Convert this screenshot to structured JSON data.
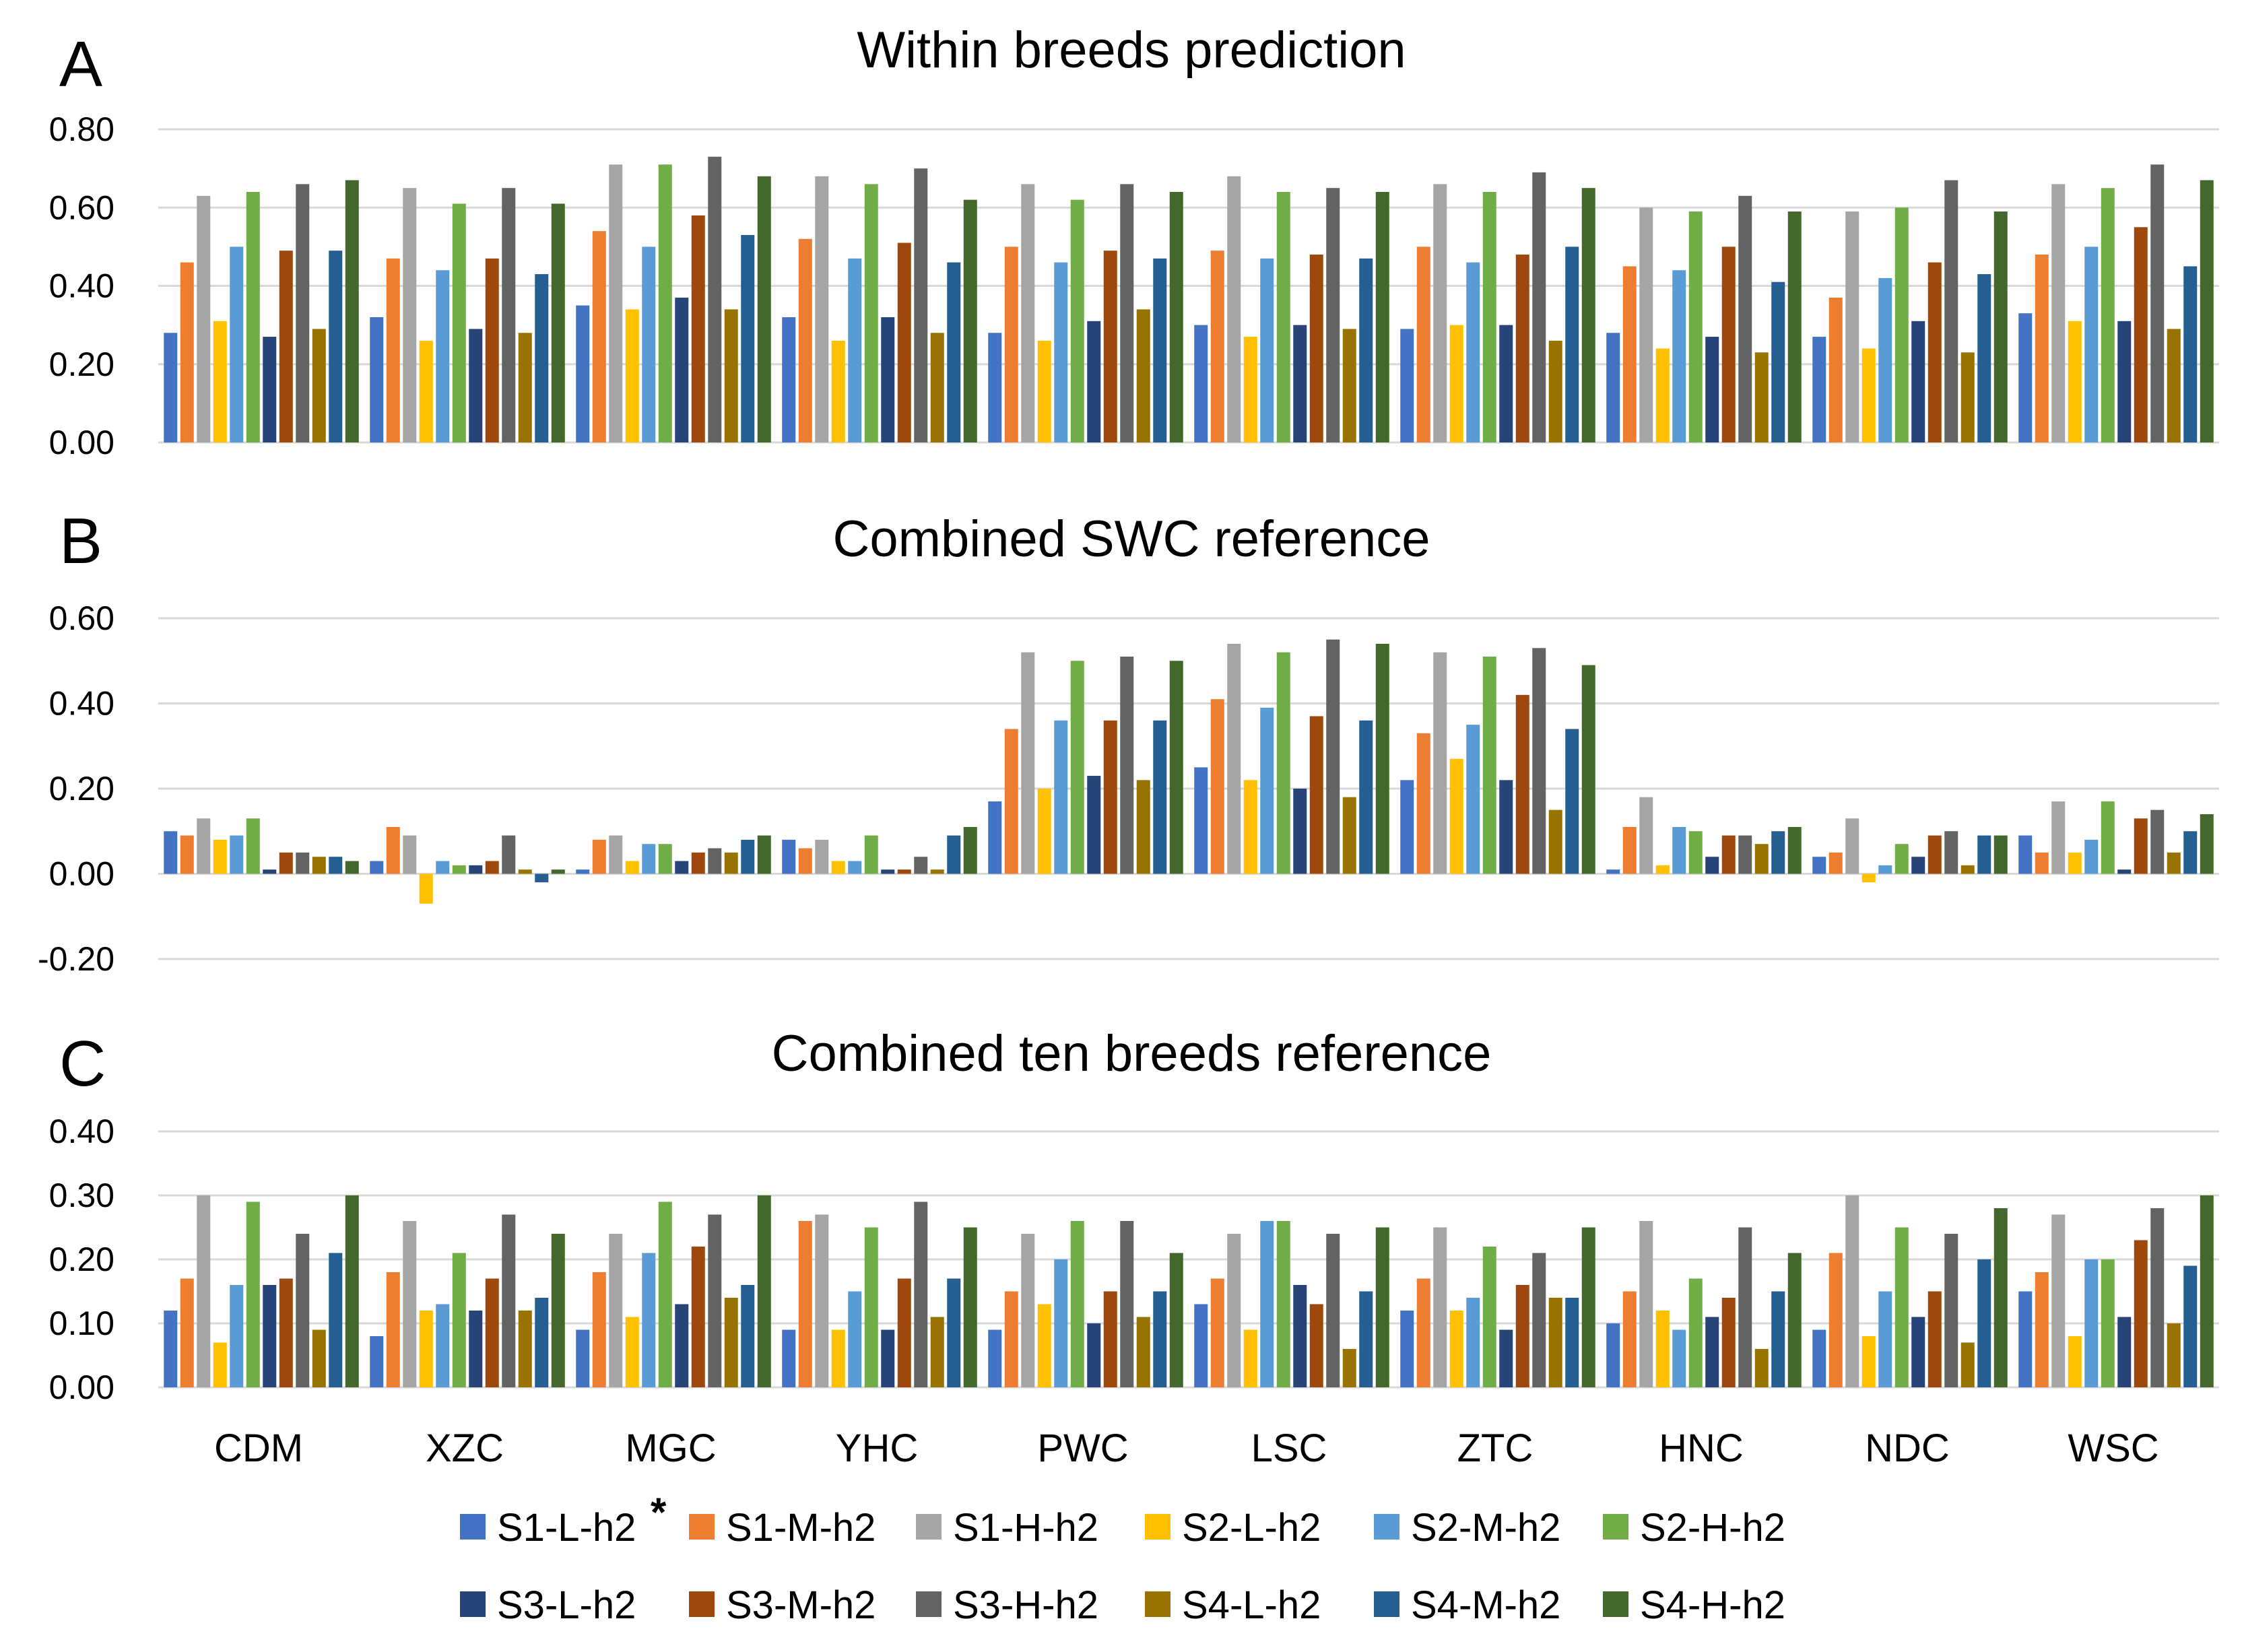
{
  "legend": {
    "footnote_mark": "*",
    "series_colors": [
      "#4472C4",
      "#ED7D31",
      "#A5A5A5",
      "#FFC000",
      "#5B9BD5",
      "#70AD47",
      "#264478",
      "#9E480E",
      "#636363",
      "#997300",
      "#255E91",
      "#43682B"
    ]
  },
  "chart_data": [
    {
      "panel": "A",
      "type": "bar",
      "title": "Within breeds prediction",
      "categories": [
        "CDM",
        "XZC",
        "MGC",
        "YHC",
        "PWC",
        "LSC",
        "ZTC",
        "HNC",
        "NDC",
        "WSC"
      ],
      "y_ticks": [
        "0.00",
        "0.20",
        "0.40",
        "0.60",
        "0.80"
      ],
      "ylim": [
        0,
        0.8
      ],
      "grid": true,
      "series": [
        {
          "name": "S1-L-h2",
          "values": [
            0.28,
            0.32,
            0.35,
            0.32,
            0.28,
            0.3,
            0.29,
            0.28,
            0.27,
            0.33
          ]
        },
        {
          "name": "S1-M-h2",
          "values": [
            0.46,
            0.47,
            0.54,
            0.52,
            0.5,
            0.49,
            0.5,
            0.45,
            0.37,
            0.48
          ]
        },
        {
          "name": "S1-H-h2",
          "values": [
            0.63,
            0.65,
            0.71,
            0.68,
            0.66,
            0.68,
            0.66,
            0.6,
            0.59,
            0.66
          ]
        },
        {
          "name": "S2-L-h2",
          "values": [
            0.31,
            0.26,
            0.34,
            0.26,
            0.26,
            0.27,
            0.3,
            0.24,
            0.24,
            0.31
          ]
        },
        {
          "name": "S2-M-h2",
          "values": [
            0.5,
            0.44,
            0.5,
            0.47,
            0.46,
            0.47,
            0.46,
            0.44,
            0.42,
            0.5
          ]
        },
        {
          "name": "S2-H-h2",
          "values": [
            0.64,
            0.61,
            0.71,
            0.66,
            0.62,
            0.64,
            0.64,
            0.59,
            0.6,
            0.65
          ]
        },
        {
          "name": "S3-L-h2",
          "values": [
            0.27,
            0.29,
            0.37,
            0.32,
            0.31,
            0.3,
            0.3,
            0.27,
            0.31,
            0.31
          ]
        },
        {
          "name": "S3-M-h2",
          "values": [
            0.49,
            0.47,
            0.58,
            0.51,
            0.49,
            0.48,
            0.48,
            0.5,
            0.46,
            0.55
          ]
        },
        {
          "name": "S3-H-h2",
          "values": [
            0.66,
            0.65,
            0.73,
            0.7,
            0.66,
            0.65,
            0.69,
            0.63,
            0.67,
            0.71
          ]
        },
        {
          "name": "S4-L-h2",
          "values": [
            0.29,
            0.28,
            0.34,
            0.28,
            0.34,
            0.29,
            0.26,
            0.23,
            0.23,
            0.29
          ]
        },
        {
          "name": "S4-M-h2",
          "values": [
            0.49,
            0.43,
            0.53,
            0.46,
            0.47,
            0.47,
            0.5,
            0.41,
            0.43,
            0.45
          ]
        },
        {
          "name": "S4-H-h2",
          "values": [
            0.67,
            0.61,
            0.68,
            0.62,
            0.64,
            0.64,
            0.65,
            0.59,
            0.59,
            0.67
          ]
        }
      ]
    },
    {
      "panel": "B",
      "type": "bar",
      "title": "Combined SWC reference",
      "categories": [
        "CDM",
        "XZC",
        "MGC",
        "YHC",
        "PWC",
        "LSC",
        "ZTC",
        "HNC",
        "NDC",
        "WSC"
      ],
      "y_ticks": [
        "-0.20",
        "0.00",
        "0.20",
        "0.40",
        "0.60"
      ],
      "ylim": [
        -0.2,
        0.6
      ],
      "grid": true,
      "series": [
        {
          "name": "S1-L-h2",
          "values": [
            0.1,
            0.03,
            0.01,
            0.08,
            0.17,
            0.25,
            0.22,
            0.01,
            0.04,
            0.09
          ]
        },
        {
          "name": "S1-M-h2",
          "values": [
            0.09,
            0.11,
            0.08,
            0.06,
            0.34,
            0.41,
            0.33,
            0.11,
            0.05,
            0.05
          ]
        },
        {
          "name": "S1-H-h2",
          "values": [
            0.13,
            0.09,
            0.09,
            0.08,
            0.52,
            0.54,
            0.52,
            0.18,
            0.13,
            0.17
          ]
        },
        {
          "name": "S2-L-h2",
          "values": [
            0.08,
            -0.07,
            0.03,
            0.03,
            0.2,
            0.22,
            0.27,
            0.02,
            -0.02,
            0.05
          ]
        },
        {
          "name": "S2-M-h2",
          "values": [
            0.09,
            0.03,
            0.07,
            0.03,
            0.36,
            0.39,
            0.35,
            0.11,
            0.02,
            0.08
          ]
        },
        {
          "name": "S2-H-h2",
          "values": [
            0.13,
            0.02,
            0.07,
            0.09,
            0.5,
            0.52,
            0.51,
            0.1,
            0.07,
            0.17
          ]
        },
        {
          "name": "S3-L-h2",
          "values": [
            0.01,
            0.02,
            0.03,
            0.01,
            0.23,
            0.2,
            0.22,
            0.04,
            0.04,
            0.01
          ]
        },
        {
          "name": "S3-M-h2",
          "values": [
            0.05,
            0.03,
            0.05,
            0.01,
            0.36,
            0.37,
            0.42,
            0.09,
            0.09,
            0.13
          ]
        },
        {
          "name": "S3-H-h2",
          "values": [
            0.05,
            0.09,
            0.06,
            0.04,
            0.51,
            0.55,
            0.53,
            0.09,
            0.1,
            0.15
          ]
        },
        {
          "name": "S4-L-h2",
          "values": [
            0.04,
            0.01,
            0.05,
            0.01,
            0.22,
            0.18,
            0.15,
            0.07,
            0.02,
            0.05
          ]
        },
        {
          "name": "S4-M-h2",
          "values": [
            0.04,
            -0.02,
            0.08,
            0.09,
            0.36,
            0.36,
            0.34,
            0.1,
            0.09,
            0.1
          ]
        },
        {
          "name": "S4-H-h2",
          "values": [
            0.03,
            0.01,
            0.09,
            0.11,
            0.5,
            0.54,
            0.49,
            0.11,
            0.09,
            0.14
          ]
        }
      ]
    },
    {
      "panel": "C",
      "type": "bar",
      "title": "Combined ten breeds reference",
      "categories": [
        "CDM",
        "XZC",
        "MGC",
        "YHC",
        "PWC",
        "LSC",
        "ZTC",
        "HNC",
        "NDC",
        "WSC"
      ],
      "y_ticks": [
        "0.00",
        "0.10",
        "0.20",
        "0.30",
        "0.40"
      ],
      "ylim": [
        0,
        0.4
      ],
      "grid": true,
      "series": [
        {
          "name": "S1-L-h2",
          "values": [
            0.12,
            0.08,
            0.09,
            0.09,
            0.09,
            0.13,
            0.12,
            0.1,
            0.09,
            0.15
          ]
        },
        {
          "name": "S1-M-h2",
          "values": [
            0.17,
            0.18,
            0.18,
            0.26,
            0.15,
            0.17,
            0.17,
            0.15,
            0.21,
            0.18
          ]
        },
        {
          "name": "S1-H-h2",
          "values": [
            0.3,
            0.26,
            0.24,
            0.27,
            0.24,
            0.24,
            0.25,
            0.26,
            0.3,
            0.27
          ]
        },
        {
          "name": "S2-L-h2",
          "values": [
            0.07,
            0.12,
            0.11,
            0.09,
            0.13,
            0.09,
            0.12,
            0.12,
            0.08,
            0.08
          ]
        },
        {
          "name": "S2-M-h2",
          "values": [
            0.16,
            0.13,
            0.21,
            0.15,
            0.2,
            0.26,
            0.14,
            0.09,
            0.15,
            0.2
          ]
        },
        {
          "name": "S2-H-h2",
          "values": [
            0.29,
            0.21,
            0.29,
            0.25,
            0.26,
            0.26,
            0.22,
            0.17,
            0.25,
            0.2
          ]
        },
        {
          "name": "S3-L-h2",
          "values": [
            0.16,
            0.12,
            0.13,
            0.09,
            0.1,
            0.16,
            0.09,
            0.11,
            0.11,
            0.11
          ]
        },
        {
          "name": "S3-M-h2",
          "values": [
            0.17,
            0.17,
            0.22,
            0.17,
            0.15,
            0.13,
            0.16,
            0.14,
            0.15,
            0.23
          ]
        },
        {
          "name": "S3-H-h2",
          "values": [
            0.24,
            0.27,
            0.27,
            0.29,
            0.26,
            0.24,
            0.21,
            0.25,
            0.24,
            0.28
          ]
        },
        {
          "name": "S4-L-h2",
          "values": [
            0.09,
            0.12,
            0.14,
            0.11,
            0.11,
            0.06,
            0.14,
            0.06,
            0.07,
            0.1
          ]
        },
        {
          "name": "S4-M-h2",
          "values": [
            0.21,
            0.14,
            0.16,
            0.17,
            0.15,
            0.15,
            0.14,
            0.15,
            0.2,
            0.19
          ]
        },
        {
          "name": "S4-H-h2",
          "values": [
            0.3,
            0.24,
            0.3,
            0.25,
            0.21,
            0.25,
            0.25,
            0.21,
            0.28,
            0.3
          ]
        }
      ]
    }
  ]
}
